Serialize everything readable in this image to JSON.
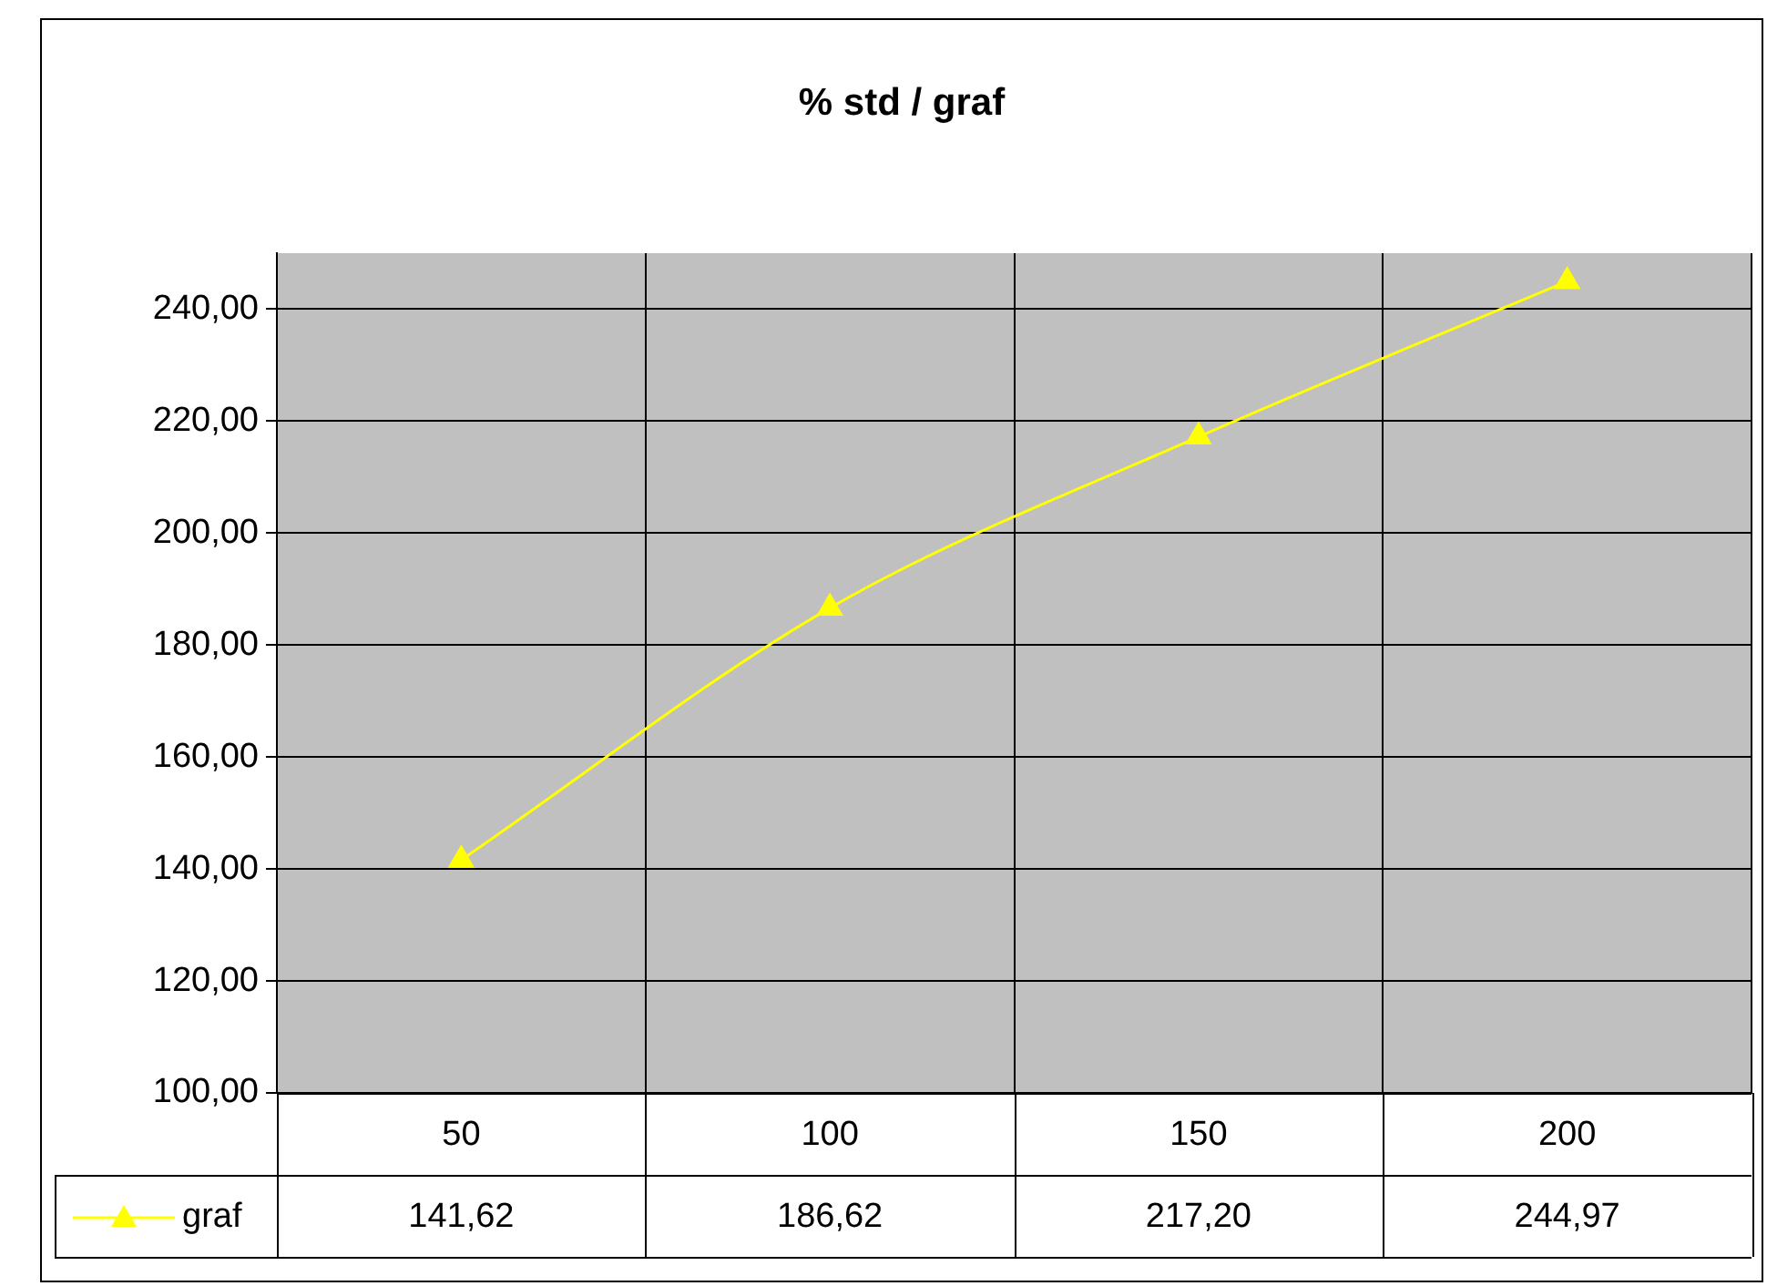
{
  "chart_data": {
    "type": "line",
    "title": "% std / graf",
    "categories": [
      "50",
      "100",
      "150",
      "200"
    ],
    "series": [
      {
        "name": "graf",
        "color": "#ffff00",
        "values": [
          141.62,
          186.62,
          217.2,
          244.97
        ],
        "value_labels": [
          "141,62",
          "186,62",
          "217,20",
          "244,97"
        ]
      }
    ],
    "ylim": [
      100,
      250
    ],
    "yticks": [
      {
        "value": 100,
        "label": "100,00"
      },
      {
        "value": 120,
        "label": "120,00"
      },
      {
        "value": 140,
        "label": "140,00"
      },
      {
        "value": 160,
        "label": "160,00"
      },
      {
        "value": 180,
        "label": "180,00"
      },
      {
        "value": 200,
        "label": "200,00"
      },
      {
        "value": 220,
        "label": "220,00"
      },
      {
        "value": 240,
        "label": "240,00"
      }
    ],
    "grid": true,
    "legend": "bottom left",
    "marker": "triangle",
    "line_style": "solid"
  }
}
